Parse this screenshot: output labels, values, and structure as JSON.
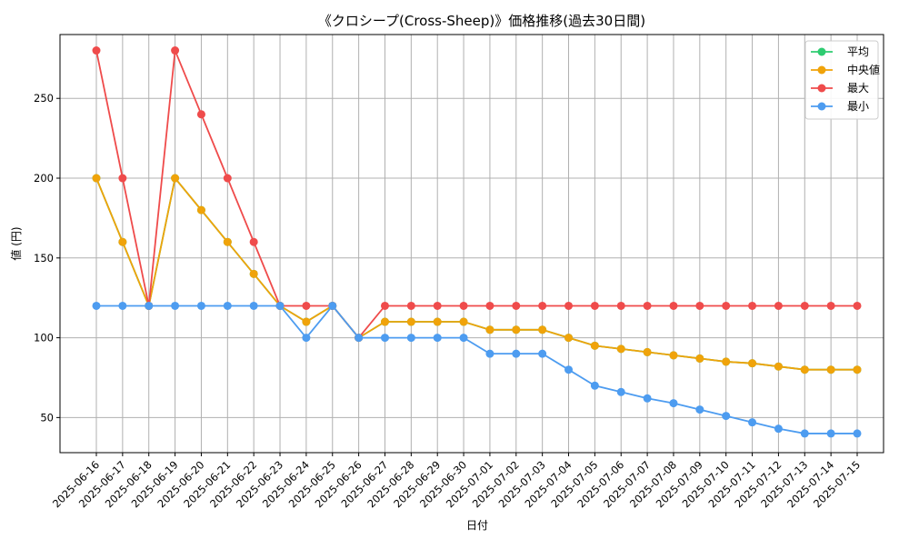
{
  "chart_data": {
    "type": "line",
    "title": "《クロシープ(Cross-Sheep)》価格推移(過去30日間)",
    "xlabel": "日付",
    "ylabel": "値 (円)",
    "ylim": [
      28,
      290
    ],
    "yticks": [
      50,
      100,
      150,
      200,
      250
    ],
    "grid": true,
    "legend_position": "top-right",
    "categories": [
      "2025-06-16",
      "2025-06-17",
      "2025-06-18",
      "2025-06-19",
      "2025-06-20",
      "2025-06-21",
      "2025-06-22",
      "2025-06-23",
      "2025-06-24",
      "2025-06-25",
      "2025-06-26",
      "2025-06-27",
      "2025-06-28",
      "2025-06-29",
      "2025-06-30",
      "2025-07-01",
      "2025-07-02",
      "2025-07-03",
      "2025-07-04",
      "2025-07-05",
      "2025-07-06",
      "2025-07-07",
      "2025-07-08",
      "2025-07-09",
      "2025-07-10",
      "2025-07-11",
      "2025-07-12",
      "2025-07-13",
      "2025-07-14",
      "2025-07-15"
    ],
    "series": [
      {
        "name": "平均",
        "color": "#2ecc71",
        "values": [
          200,
          160,
          120,
          200,
          180,
          160,
          140,
          120,
          110,
          120,
          100,
          110,
          110,
          110,
          110,
          105,
          105,
          105,
          100,
          95,
          93,
          91,
          89,
          87,
          85,
          84,
          82,
          80,
          80,
          80
        ]
      },
      {
        "name": "中央値",
        "color": "#f0a30a",
        "values": [
          200,
          160,
          120,
          200,
          180,
          160,
          140,
          120,
          110,
          120,
          100,
          110,
          110,
          110,
          110,
          105,
          105,
          105,
          100,
          95,
          93,
          91,
          89,
          87,
          85,
          84,
          82,
          80,
          80,
          80
        ]
      },
      {
        "name": "最大",
        "color": "#ef4b4b",
        "values": [
          280,
          200,
          120,
          280,
          240,
          200,
          160,
          120,
          120,
          120,
          100,
          120,
          120,
          120,
          120,
          120,
          120,
          120,
          120,
          120,
          120,
          120,
          120,
          120,
          120,
          120,
          120,
          120,
          120,
          120
        ]
      },
      {
        "name": "最小",
        "color": "#4d9cf0",
        "values": [
          120,
          120,
          120,
          120,
          120,
          120,
          120,
          120,
          100,
          120,
          100,
          100,
          100,
          100,
          100,
          90,
          90,
          90,
          80,
          70,
          66,
          62,
          59,
          55,
          51,
          47,
          43,
          40,
          40,
          40
        ]
      }
    ]
  }
}
